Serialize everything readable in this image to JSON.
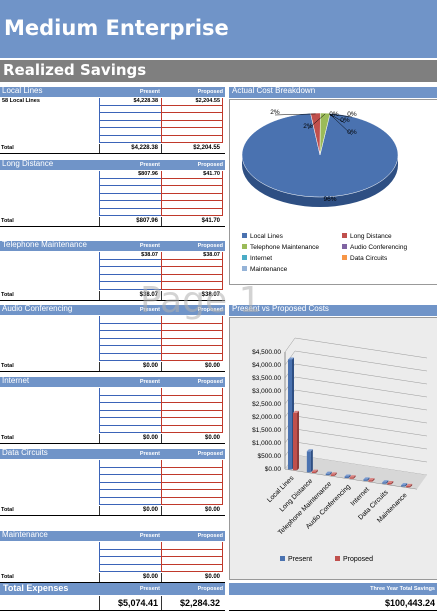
{
  "header": {
    "title": "Medium Enterprise",
    "subtitle": "Realized Savings"
  },
  "watermark": "Page 1",
  "columns": {
    "present": "Present",
    "proposed": "Proposed"
  },
  "total_label": "Total",
  "sections": [
    {
      "title": "Local Lines",
      "rows": [
        {
          "desc": "58 Local Lines",
          "present": "$4,228.38",
          "proposed": "$2,204.55"
        }
      ],
      "total_present": "$4,228.38",
      "total_proposed": "$2,204.55"
    },
    {
      "title": "Long Distance",
      "rows": [
        {
          "desc": "",
          "present": "$807.96",
          "proposed": "$41.70"
        }
      ],
      "total_present": "$807.96",
      "total_proposed": "$41.70"
    },
    {
      "title": "Telephone Maintenance",
      "rows": [
        {
          "desc": "",
          "present": "$38.07",
          "proposed": "$38.07"
        }
      ],
      "total_present": "$38.07",
      "total_proposed": "$38.07"
    },
    {
      "title": "Audio Conferencing",
      "rows": [],
      "total_present": "$0.00",
      "total_proposed": "$0.00"
    },
    {
      "title": "Internet",
      "rows": [],
      "total_present": "$0.00",
      "total_proposed": "$0.00"
    },
    {
      "title": "Data Circuits",
      "rows": [],
      "total_present": "$0.00",
      "total_proposed": "$0.00"
    },
    {
      "title": "Maintenance",
      "rows": [],
      "total_present": "$0.00",
      "total_proposed": "$0.00"
    }
  ],
  "total_expenses": {
    "title": "Total Expenses",
    "present": "$5,074.41",
    "proposed": "$2,284.32"
  },
  "three_year": {
    "label": "Three Year Total Savings",
    "value": "$100,443.24"
  },
  "pie_panel": {
    "title": "Actual Cost Breakdown"
  },
  "bar_panel": {
    "title": "Present vs Proposed Costs"
  },
  "chart_data": [
    {
      "type": "pie",
      "title": "Actual Cost Breakdown",
      "categories": [
        "Local Lines",
        "Long Distance",
        "Telephone Maintenance",
        "Audio Conferencing",
        "Internet",
        "Data Circuits",
        "Maintenance"
      ],
      "values": [
        96,
        2,
        2,
        0,
        0,
        0,
        0
      ],
      "data_labels": [
        "96%",
        "2%",
        "2%",
        "0%",
        "0%",
        "0%",
        "0%"
      ],
      "colors": [
        "#4a72b0",
        "#c0504d",
        "#9bbb59",
        "#8064a2",
        "#4bacc6",
        "#f79646",
        "#95b3d7"
      ],
      "legend": "bottom"
    },
    {
      "type": "bar",
      "title": "Present vs Proposed Costs",
      "categories": [
        "Local Lines",
        "Long Distance",
        "Telephone Maintenance",
        "Audio Conferencing",
        "Internet",
        "Data Circuits",
        "Maintenance"
      ],
      "series": [
        {
          "name": "Present",
          "values": [
            4228.38,
            807.96,
            38.07,
            0,
            0,
            0,
            0
          ],
          "color": "#4a72b0"
        },
        {
          "name": "Proposed",
          "values": [
            2204.55,
            41.7,
            38.07,
            0,
            0,
            0,
            0
          ],
          "color": "#c0504d"
        }
      ],
      "yticks": [
        "$0.00",
        "$500.00",
        "$1,000.00",
        "$1,500.00",
        "$2,000.00",
        "$2,500.00",
        "$3,000.00",
        "$3,500.00",
        "$4,000.00",
        "$4,500.00"
      ],
      "ylim": [
        0,
        4500
      ],
      "legend": "bottom"
    }
  ]
}
